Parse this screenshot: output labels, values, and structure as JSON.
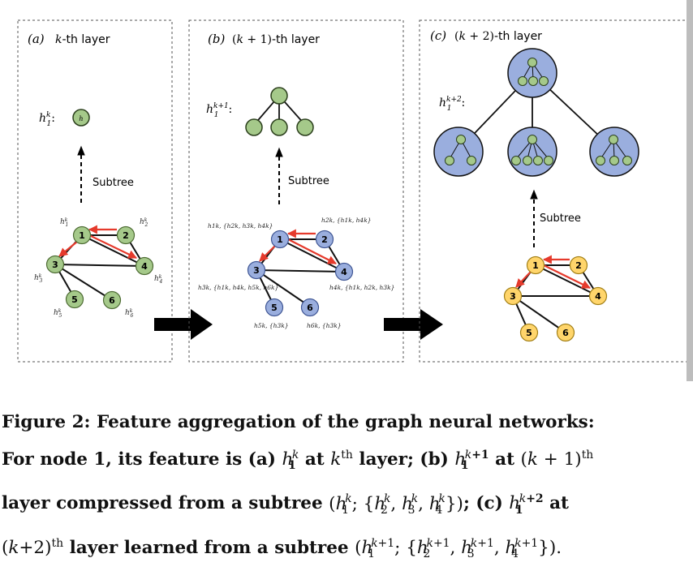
{
  "panels": [
    {
      "tag": "(a)",
      "title": "k-th layer",
      "root_label": "h1k:",
      "subtree_label": "Subtree",
      "node_color": "#a5c98a",
      "node_stroke": "#4d6b33"
    },
    {
      "tag": "(b)",
      "title": "(k + 1)-th layer",
      "root_label": "h1k+1:",
      "subtree_label": "Subtree",
      "node_color": "#9aaede",
      "node_stroke": "#3f5694"
    },
    {
      "tag": "(c)",
      "title": "(k + 2)-th layer",
      "root_label": "h1k+2:",
      "subtree_label": "Subtree",
      "node_color": "#ffd56b",
      "node_stroke": "#a38017"
    }
  ],
  "graph": {
    "nodes": [
      "1",
      "2",
      "3",
      "4",
      "5",
      "6"
    ],
    "edges": [
      [
        "1",
        "2"
      ],
      [
        "1",
        "3"
      ],
      [
        "1",
        "4"
      ],
      [
        "2",
        "4"
      ],
      [
        "3",
        "4"
      ],
      [
        "3",
        "5"
      ],
      [
        "3",
        "6"
      ]
    ],
    "highlight_edges": [
      [
        "2",
        "1"
      ],
      [
        "1",
        "4"
      ],
      [
        "1",
        "3"
      ]
    ]
  },
  "panel_b_aggregations": {
    "n1": "h1k, {h2k, h3k, h4k}",
    "n2": "h2k, {h1k, h4k}",
    "n3": "h3k, {h1k, h4k, h5k, h6k}",
    "n4": "h4k, {h1k, h2k, h3k}",
    "n5": "h5k, {h3k}",
    "n6": "h6k, {h3k}"
  },
  "colors": {
    "highlight": "#e53a2c",
    "edge": "#111111",
    "subtree_fill": "#9aaede",
    "arrow": "#000000"
  },
  "caption": {
    "figure_label": "Figure 2:",
    "text_l1": "Feature aggregation of the graph neural networks:",
    "l2_a": "For node 1, its feature is (a)",
    "l2_b": "at",
    "l2_c": "layer; (b)",
    "l2_d": "at",
    "l3_a": "layer compressed from a subtree",
    "l3_b": "; (c)",
    "l3_c": "at",
    "l4_a": "layer learned from a subtree"
  }
}
